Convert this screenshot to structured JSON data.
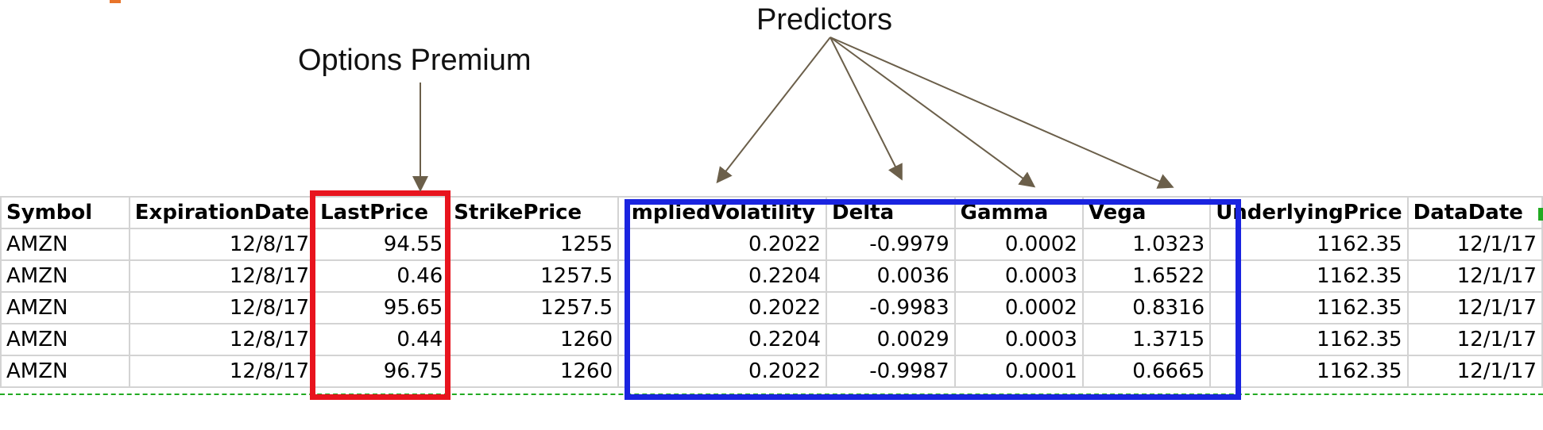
{
  "annotations": {
    "predictors": "Predictors",
    "options_premium": "Options Premium"
  },
  "table": {
    "columns": [
      "Symbol",
      "ExpirationDate",
      "LastPrice",
      "StrikePrice",
      "ImpliedVolatility",
      "Delta",
      "Gamma",
      "Vega",
      "UnderlyingPrice",
      "DataDate"
    ],
    "rows": [
      [
        "AMZN",
        "12/8/17",
        "94.55",
        "1255",
        "0.2022",
        "-0.9979",
        "0.0002",
        "1.0323",
        "1162.35",
        "12/1/17"
      ],
      [
        "AMZN",
        "12/8/17",
        "0.46",
        "1257.5",
        "0.2204",
        "0.0036",
        "0.0003",
        "1.6522",
        "1162.35",
        "12/1/17"
      ],
      [
        "AMZN",
        "12/8/17",
        "95.65",
        "1257.5",
        "0.2022",
        "-0.9983",
        "0.0002",
        "0.8316",
        "1162.35",
        "12/1/17"
      ],
      [
        "AMZN",
        "12/8/17",
        "0.44",
        "1260",
        "0.2204",
        "0.0029",
        "0.0003",
        "1.3715",
        "1162.35",
        "12/1/17"
      ],
      [
        "AMZN",
        "12/8/17",
        "96.75",
        "1260",
        "0.2022",
        "-0.9987",
        "0.0001",
        "0.6665",
        "1162.35",
        "12/1/17"
      ]
    ]
  },
  "highlights": {
    "premium_color": "#e8141e",
    "predictors_color": "#1a24e0",
    "arrow_color": "#6b5f4a",
    "dash_color": "#22aa22"
  }
}
